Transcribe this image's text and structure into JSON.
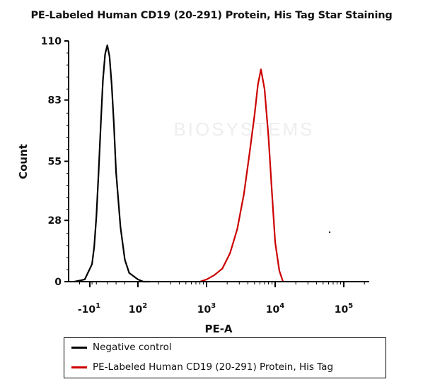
{
  "chart_data": {
    "type": "line",
    "title": "PE-Labeled Human CD19 (20-291) Protein, His Tag Star Staining",
    "xlabel": "PE-A",
    "ylabel": "Count",
    "x_scale": "log",
    "xlim": [
      -30,
      300000
    ],
    "ylim": [
      0,
      110
    ],
    "yticks": [
      0,
      28,
      55,
      83,
      110
    ],
    "ytick_labels": [
      "0",
      "28",
      "55",
      "83",
      "110"
    ],
    "xticks": [
      -10,
      100,
      1000,
      10000,
      100000
    ],
    "xtick_labels": [
      {
        "base": "-10",
        "exp": "1"
      },
      {
        "base": "10",
        "exp": "2"
      },
      {
        "base": "10",
        "exp": "3"
      },
      {
        "base": "10",
        "exp": "4"
      },
      {
        "base": "10",
        "exp": "5"
      }
    ],
    "watermark": "BIOSYSTEMS",
    "legend_position": "bottom",
    "series": [
      {
        "name": "Negative control",
        "color": "#000000",
        "x": [
          -25,
          -15,
          -5,
          0,
          5,
          10,
          15,
          20,
          25,
          30,
          35,
          40,
          45,
          50,
          60,
          70,
          80,
          100,
          120,
          150
        ],
        "y": [
          0,
          1,
          8,
          16,
          30,
          50,
          72,
          92,
          104,
          108,
          103,
          90,
          72,
          50,
          25,
          10,
          4,
          1,
          0,
          0
        ]
      },
      {
        "name": "PE-Labeled Human CD19 (20-291) Protein, His Tag",
        "color": "#cc0000",
        "x": [
          800,
          1000,
          1300,
          1700,
          2200,
          2800,
          3500,
          4200,
          5000,
          5600,
          6200,
          7000,
          8000,
          9000,
          10000,
          11500,
          13000
        ],
        "y": [
          0,
          1,
          3,
          6,
          13,
          24,
          40,
          58,
          76,
          90,
          97,
          88,
          66,
          40,
          18,
          5,
          0
        ]
      }
    ]
  }
}
